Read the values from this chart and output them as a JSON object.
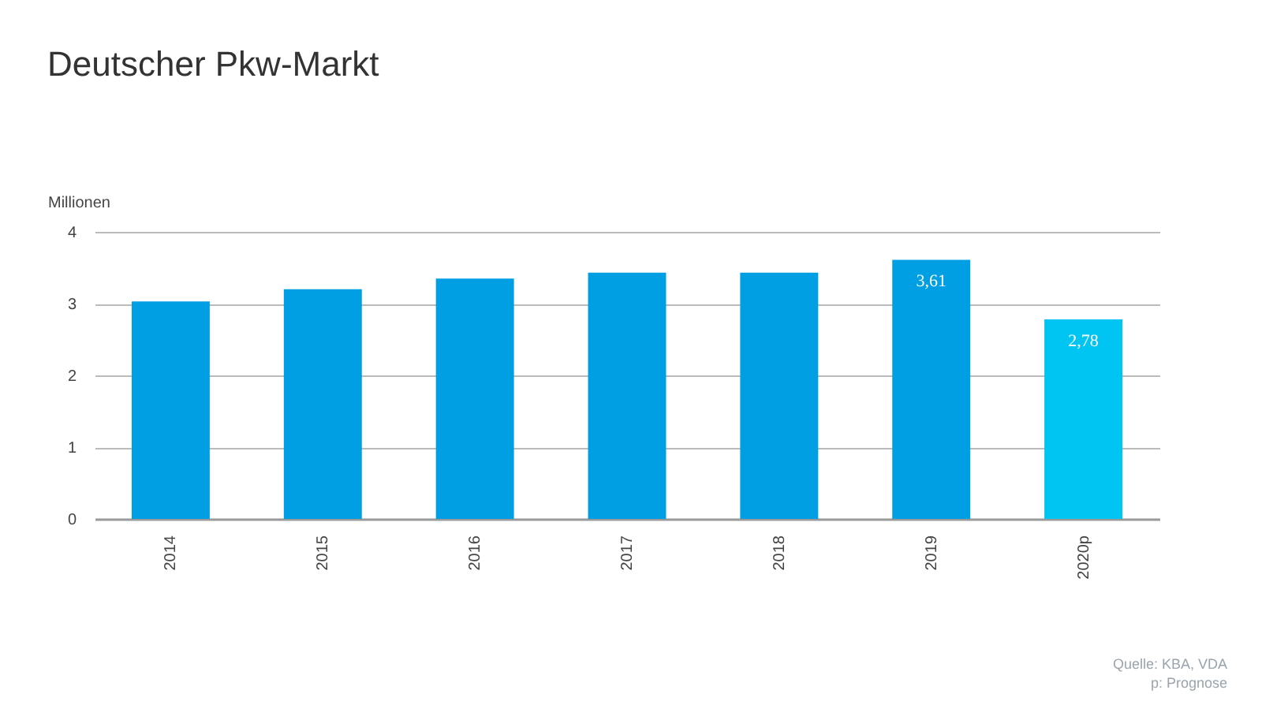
{
  "chart_data": {
    "type": "bar",
    "title": "Deutscher Pkw-Markt",
    "ylabel": "Millionen",
    "categories": [
      "2014",
      "2015",
      "2016",
      "2017",
      "2018",
      "2019",
      "2020p"
    ],
    "values": [
      3.03,
      3.2,
      3.35,
      3.43,
      3.43,
      3.61,
      2.78
    ],
    "colors": [
      "#009ee3",
      "#009ee3",
      "#009ee3",
      "#009ee3",
      "#009ee3",
      "#009ee3",
      "#00c4f2"
    ],
    "value_labels": [
      null,
      null,
      null,
      null,
      null,
      "3,61",
      "2,78"
    ],
    "ylim": [
      0,
      4
    ],
    "yticks": [
      0,
      1,
      2,
      3,
      4
    ],
    "grid": "y",
    "annotations": [
      "Quelle: KBA, VDA",
      "p: Prognose"
    ]
  }
}
